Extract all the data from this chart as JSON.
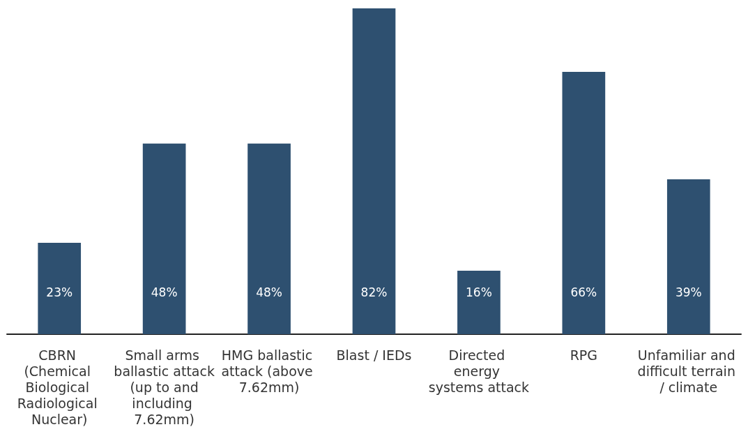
{
  "chart_data": {
    "type": "bar",
    "categories": [
      "CBRN (Chemical Biological Radiological Nuclear)",
      "Small arms ballastic attack (up to and including 7.62mm)",
      "HMG ballastic attack (above 7.62mm)",
      "Blast / IEDs",
      "Directed energy systems attack",
      "RPG",
      "Unfamiliar and difficult terrain / climate"
    ],
    "values": [
      23,
      48,
      48,
      82,
      16,
      66,
      39
    ],
    "value_labels": [
      "23%",
      "48%",
      "48%",
      "82%",
      "16%",
      "66%",
      "39%"
    ],
    "color": "#2e5070",
    "grid": false
  }
}
